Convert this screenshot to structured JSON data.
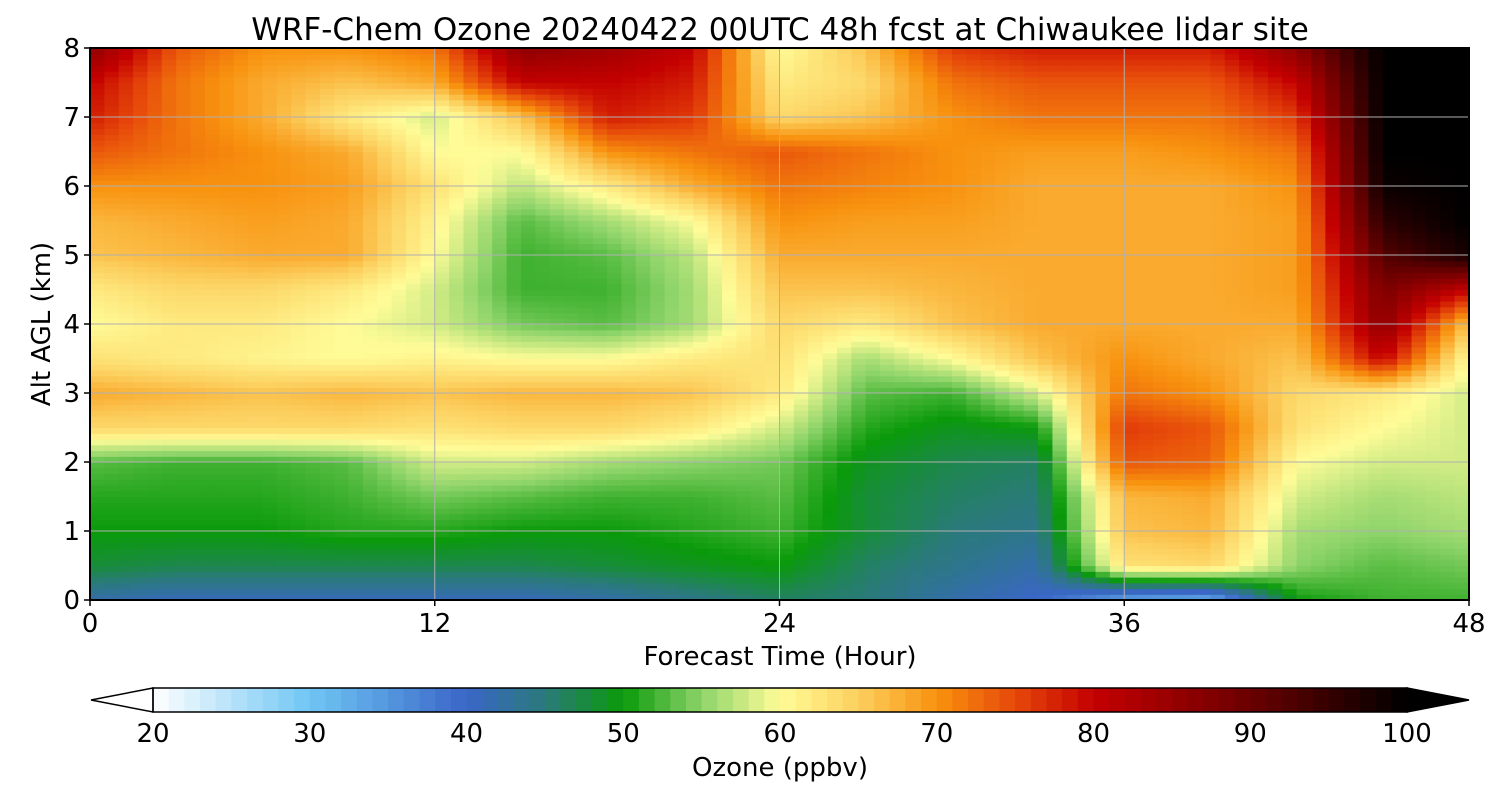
{
  "chart_data": {
    "type": "heatmap",
    "title": "WRF-Chem Ozone  20240422 00UTC 48h fcst at Chiwaukee lidar site",
    "xlabel": "Forecast Time (Hour)",
    "ylabel": "Alt AGL (km)",
    "xlim": [
      0,
      48
    ],
    "ylim": [
      0,
      8
    ],
    "x_ticks": [
      0,
      12,
      24,
      36,
      48
    ],
    "y_ticks": [
      0,
      1,
      2,
      3,
      4,
      5,
      6,
      7,
      8
    ],
    "grid": true,
    "x": [
      0,
      3,
      6,
      9,
      12,
      15,
      18,
      21,
      24,
      27,
      30,
      33,
      36,
      39,
      42,
      45,
      48
    ],
    "y": [
      0,
      0.5,
      1,
      1.5,
      2,
      2.5,
      3,
      3.5,
      4,
      4.5,
      5,
      5.5,
      6,
      6.5,
      7,
      7.5,
      8
    ],
    "z": [
      [
        42,
        41,
        41,
        41,
        41,
        41,
        42,
        44,
        46,
        45,
        42,
        40,
        33,
        32,
        50,
        52,
        52
      ],
      [
        48,
        47,
        47,
        47,
        47,
        47,
        48,
        49,
        50,
        46,
        44,
        42,
        63,
        64,
        55,
        53,
        54
      ],
      [
        50,
        50,
        50,
        51,
        51,
        50,
        50,
        51,
        52,
        48,
        45,
        44,
        66,
        67,
        56,
        55,
        56
      ],
      [
        51,
        51,
        51,
        52,
        54,
        53,
        52,
        52,
        53,
        48,
        46,
        45,
        67,
        68,
        58,
        56,
        57
      ],
      [
        53,
        52,
        52,
        53,
        58,
        58,
        56,
        55,
        54,
        49,
        47,
        46,
        74,
        73,
        60,
        58,
        58
      ],
      [
        64,
        64,
        64,
        64,
        63,
        64,
        64,
        62,
        58,
        51,
        49,
        50,
        76,
        74,
        63,
        60,
        58
      ],
      [
        68,
        67,
        66,
        67,
        66,
        67,
        67,
        66,
        62,
        53,
        52,
        58,
        72,
        70,
        64,
        62,
        58
      ],
      [
        63,
        62,
        61,
        60,
        61,
        60,
        60,
        62,
        63,
        56,
        60,
        66,
        70,
        68,
        66,
        80,
        60
      ],
      [
        60,
        62,
        62,
        60,
        58,
        54,
        53,
        56,
        64,
        62,
        66,
        68,
        68,
        68,
        68,
        86,
        66
      ],
      [
        62,
        64,
        64,
        62,
        58,
        52,
        52,
        56,
        66,
        66,
        67,
        68,
        68,
        68,
        69,
        88,
        80
      ],
      [
        66,
        67,
        68,
        68,
        60,
        52,
        53,
        57,
        68,
        68,
        68,
        68,
        68,
        68,
        69,
        92,
        98
      ],
      [
        67,
        68,
        69,
        68,
        61,
        53,
        56,
        60,
        70,
        69,
        69,
        68,
        68,
        68,
        69,
        96,
        100
      ],
      [
        70,
        70,
        70,
        69,
        63,
        57,
        62,
        68,
        72,
        71,
        70,
        68,
        68,
        68,
        70,
        99,
        100
      ],
      [
        74,
        72,
        70,
        68,
        60,
        60,
        70,
        72,
        74,
        72,
        70,
        69,
        69,
        70,
        72,
        100,
        100
      ],
      [
        78,
        72,
        68,
        62,
        58,
        66,
        78,
        76,
        64,
        66,
        70,
        72,
        72,
        72,
        76,
        100,
        100
      ],
      [
        80,
        72,
        68,
        66,
        68,
        80,
        80,
        78,
        62,
        64,
        72,
        74,
        74,
        74,
        80,
        100,
        100
      ],
      [
        86,
        74,
        70,
        70,
        72,
        86,
        84,
        80,
        60,
        66,
        76,
        78,
        78,
        78,
        86,
        100,
        100
      ]
    ],
    "colorbar": {
      "label": "Ozone  (ppbv)",
      "min": 20,
      "max": 100,
      "ticks": [
        20,
        30,
        40,
        50,
        60,
        70,
        80,
        90,
        100
      ],
      "extend": "both",
      "stops": [
        {
          "v": 20,
          "c": "#ffffff"
        },
        {
          "v": 30,
          "c": "#6fc6f4"
        },
        {
          "v": 40,
          "c": "#3a66c8"
        },
        {
          "v": 45,
          "c": "#2a7a7a"
        },
        {
          "v": 50,
          "c": "#0a9a0a"
        },
        {
          "v": 55,
          "c": "#8ed46a"
        },
        {
          "v": 60,
          "c": "#fffc98"
        },
        {
          "v": 65,
          "c": "#fccf5e"
        },
        {
          "v": 70,
          "c": "#f8920e"
        },
        {
          "v": 75,
          "c": "#e6480a"
        },
        {
          "v": 80,
          "c": "#c40000"
        },
        {
          "v": 90,
          "c": "#6a0000"
        },
        {
          "v": 100,
          "c": "#000000"
        }
      ]
    }
  }
}
